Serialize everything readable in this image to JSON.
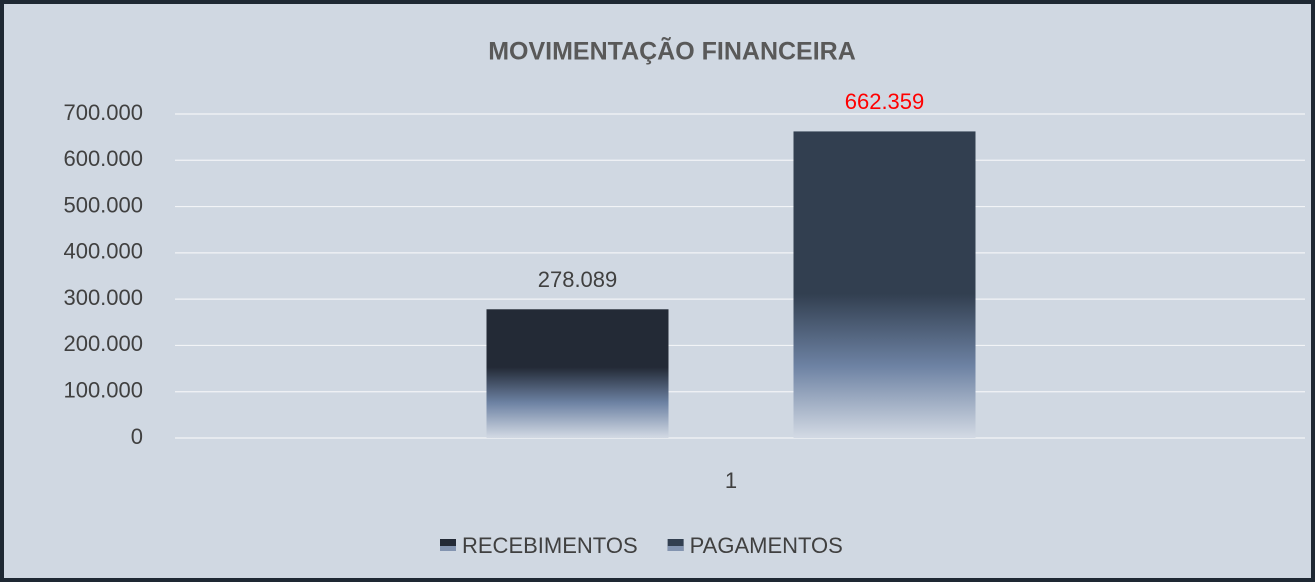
{
  "chart_data": {
    "type": "bar",
    "title": "MOVIMENTAÇÃO FINANCEIRA",
    "categories": [
      "1"
    ],
    "series": [
      {
        "name": "RECEBIMENTOS",
        "color": "#232a36",
        "values": [
          278089
        ],
        "value_labels": [
          "278.089"
        ],
        "label_color": "#404040"
      },
      {
        "name": "PAGAMENTOS",
        "color": "#323f50",
        "values": [
          662359
        ],
        "value_labels": [
          "662.359"
        ],
        "label_color": "#ff0000"
      }
    ],
    "ylim": [
      0,
      700000
    ],
    "yticks": [
      0,
      {
        "value": 100000,
        "label": "100.000"
      },
      {
        "value": 200000,
        "label": "200.000"
      },
      {
        "value": 300000,
        "label": "300.000"
      },
      {
        "value": 400000,
        "label": "400.000"
      },
      {
        "value": 500000,
        "label": "500.000"
      },
      {
        "value": 600000,
        "label": "600.000"
      },
      {
        "value": 700000,
        "label": "700.000"
      }
    ],
    "grid": true,
    "legend": "bottom"
  }
}
